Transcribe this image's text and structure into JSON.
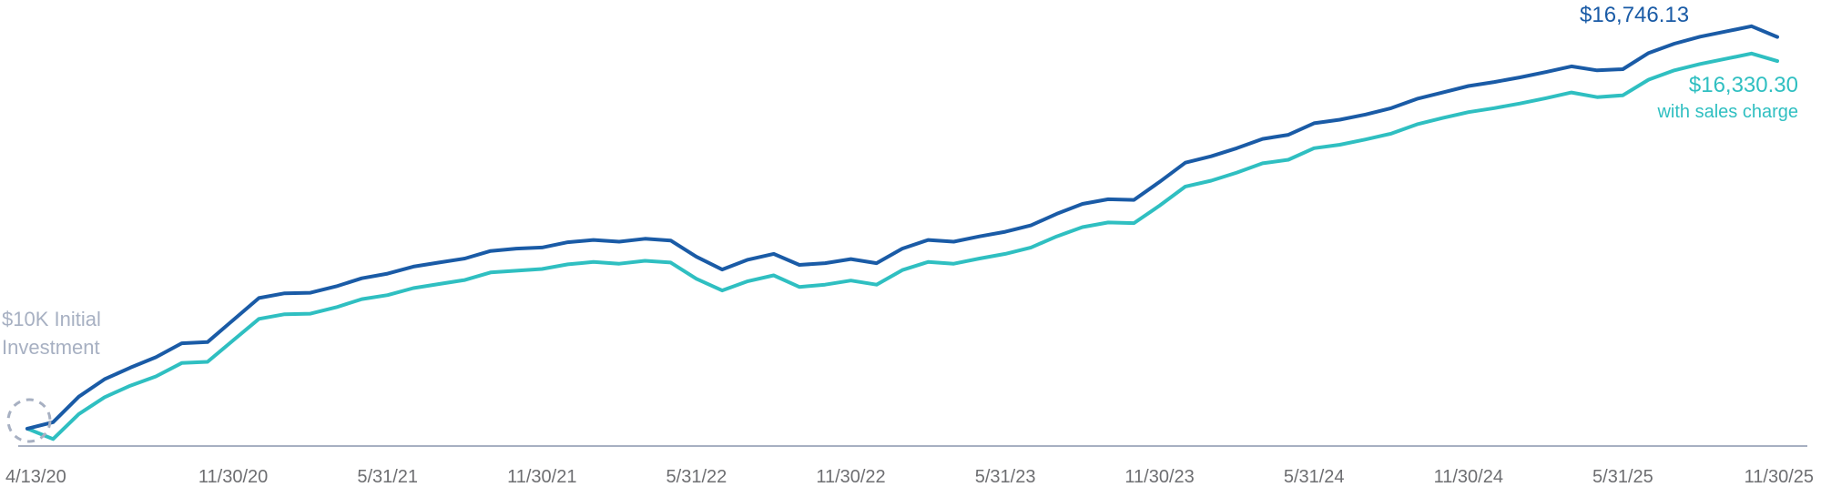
{
  "chart_data": {
    "type": "line",
    "title": "",
    "xlabel": "",
    "ylabel": "",
    "grid": false,
    "x_tick_labels": [
      "4/13/20",
      "11/30/20",
      "5/31/21",
      "11/30/21",
      "5/31/22",
      "11/30/22",
      "5/31/23",
      "11/30/23",
      "5/31/24",
      "11/30/24",
      "5/31/25",
      "11/30/25"
    ],
    "x": [
      "4/13/20",
      "4/30/20",
      "5/31/20",
      "6/30/20",
      "7/31/20",
      "8/31/20",
      "9/30/20",
      "10/31/20",
      "11/30/20",
      "12/31/20",
      "1/31/21",
      "2/28/21",
      "3/31/21",
      "4/30/21",
      "5/31/21",
      "6/30/21",
      "7/31/21",
      "8/31/21",
      "9/30/21",
      "10/31/21",
      "11/30/21",
      "12/31/21",
      "1/31/22",
      "2/28/22",
      "3/31/22",
      "4/30/22",
      "5/31/22",
      "6/30/22",
      "7/31/22",
      "8/31/22",
      "9/30/22",
      "10/31/22",
      "11/30/22",
      "12/31/22",
      "1/31/23",
      "2/28/23",
      "3/31/23",
      "4/30/23",
      "5/31/23",
      "6/30/23",
      "7/31/23",
      "8/31/23",
      "9/30/23",
      "10/31/23",
      "11/30/23",
      "12/31/23",
      "1/31/24",
      "2/29/24",
      "3/31/24",
      "4/30/24",
      "5/31/24",
      "6/30/24",
      "7/31/24",
      "8/31/24",
      "9/30/24",
      "10/31/24",
      "11/30/24",
      "12/31/24",
      "1/31/25",
      "2/28/25",
      "3/31/25",
      "4/30/25",
      "5/31/25",
      "6/30/25",
      "7/31/25",
      "8/31/25",
      "9/30/25",
      "10/31/25",
      "11/30/25"
    ],
    "series": [
      {
        "key": "without_sales_charge",
        "color": "#1a5ba6",
        "end_label": "$16,746.13",
        "values": [
          10000,
          10110,
          10550,
          10850,
          11050,
          11230,
          11470,
          11490,
          11870,
          12250,
          12330,
          12340,
          12450,
          12590,
          12670,
          12790,
          12860,
          12930,
          13060,
          13100,
          13120,
          13210,
          13250,
          13220,
          13270,
          13240,
          12960,
          12740,
          12910,
          13010,
          12820,
          12850,
          12920,
          12850,
          13100,
          13250,
          13220,
          13310,
          13390,
          13500,
          13700,
          13870,
          13950,
          13940,
          14250,
          14580,
          14690,
          14830,
          14990,
          15060,
          15260,
          15320,
          15410,
          15520,
          15680,
          15790,
          15900,
          15970,
          16050,
          16140,
          16240,
          16170,
          16190,
          16470,
          16630,
          16750,
          16840,
          16930,
          16746.13
        ]
      },
      {
        "key": "with_sales_charge",
        "color": "#2fbfc1",
        "end_label": "$16,330.30",
        "sublabel": "with sales charge",
        "values": [
          10000,
          9820,
          10250,
          10540,
          10740,
          10900,
          11130,
          11150,
          11520,
          11890,
          11970,
          11980,
          12090,
          12230,
          12300,
          12420,
          12490,
          12560,
          12690,
          12720,
          12750,
          12830,
          12870,
          12840,
          12890,
          12860,
          12580,
          12380,
          12540,
          12640,
          12440,
          12480,
          12550,
          12480,
          12730,
          12870,
          12840,
          12930,
          13010,
          13120,
          13310,
          13470,
          13550,
          13540,
          13840,
          14170,
          14270,
          14410,
          14570,
          14630,
          14830,
          14890,
          14980,
          15080,
          15240,
          15350,
          15450,
          15520,
          15600,
          15690,
          15790,
          15710,
          15740,
          16010,
          16170,
          16280,
          16370,
          16460,
          16330.3
        ]
      }
    ],
    "ylim": [
      9700,
      17100
    ],
    "annotations": {
      "initial_label_line1": "$10K Initial",
      "initial_label_line2": "Investment",
      "initial_value": 10000
    },
    "colors": {
      "axis": "#a7b0c2",
      "tick_text": "#6d6e71",
      "initial_text": "#a7b0c2",
      "initial_marker": "#a7b0c2"
    }
  }
}
